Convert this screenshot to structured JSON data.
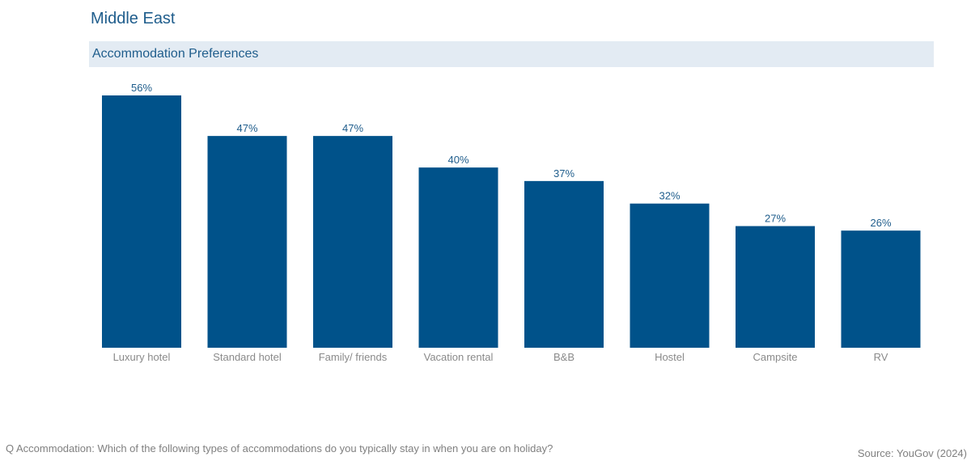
{
  "page": {
    "title": "Middle East",
    "subtitle": "Accommodation Preferences",
    "question": "Q Accommodation: Which of the following types of accommodations do you typically stay in when you are on holiday?",
    "source": "Source: YouGov (2024)"
  },
  "colors": {
    "bar": "#00528a",
    "value_label": "#1f5d8c",
    "category_label": "#8a8a8a",
    "subtitle_background": "#e3ebf3"
  },
  "chart_data": {
    "type": "bar",
    "title": "Accommodation Preferences",
    "categories": [
      "Luxury hotel",
      "Standard hotel",
      "Family/ friends",
      "Vacation rental",
      "B&B",
      "Hostel",
      "Campsite",
      "RV"
    ],
    "values": [
      56,
      47,
      47,
      40,
      37,
      32,
      27,
      26
    ],
    "value_labels": [
      "56%",
      "47%",
      "47%",
      "40%",
      "37%",
      "32%",
      "27%",
      "26%"
    ],
    "unit": "%",
    "ylim": [
      0,
      56
    ],
    "grid": false,
    "legend": "none",
    "xlabel": "",
    "ylabel": ""
  }
}
